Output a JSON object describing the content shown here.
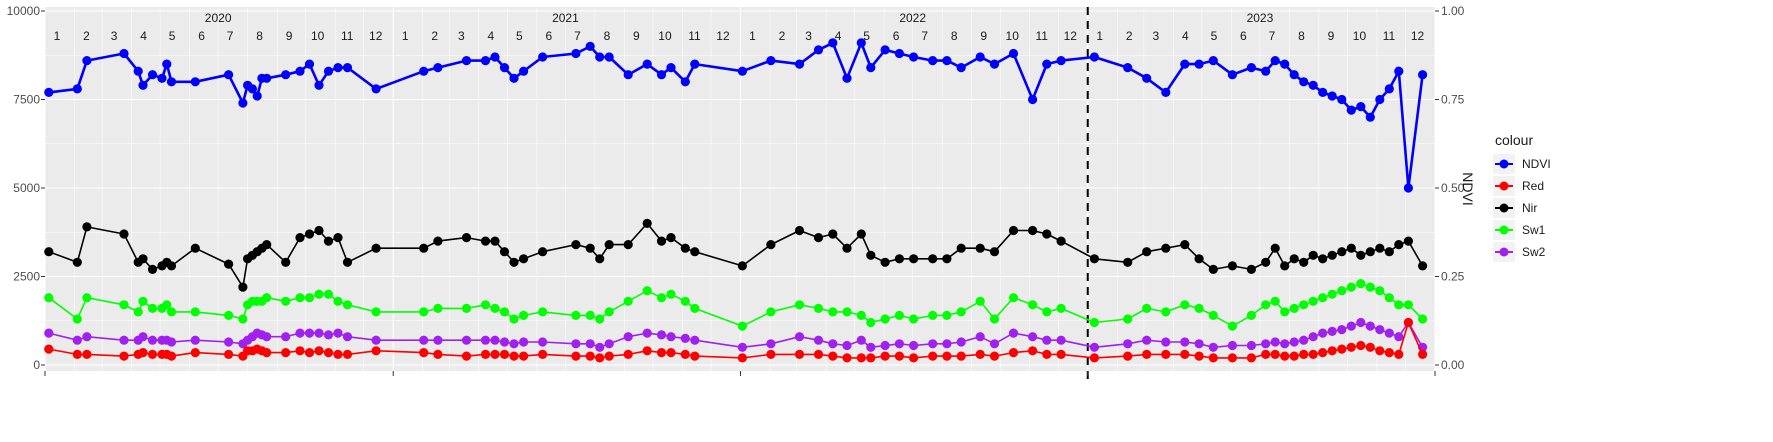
{
  "chart_data": {
    "type": "line",
    "ylim_left": [
      0,
      10000
    ],
    "ylim_right": [
      0.0,
      1.0
    ],
    "y_ticks_left": [
      "0",
      "2500",
      "5000",
      "7500",
      "10000"
    ],
    "y_ticks_right": [
      "0.00",
      "0.25",
      "0.50",
      "0.75",
      "1.00"
    ],
    "ylabel_right": "NDVI",
    "grid": true,
    "legend_position": "right",
    "legend_title": "colour",
    "x_range": [
      "2020-01-01",
      "2024-01-01"
    ],
    "years": [
      {
        "label": "2020",
        "date": "2020-07-01"
      },
      {
        "label": "2021",
        "date": "2021-07-01"
      },
      {
        "label": "2022",
        "date": "2022-07-01"
      },
      {
        "label": "2023",
        "date": "2023-07-01"
      }
    ],
    "months": [
      "1",
      "2",
      "3",
      "4",
      "5",
      "6",
      "7",
      "8",
      "9",
      "10",
      "11",
      "12"
    ],
    "vline_date": "2023-01-01",
    "colors": {
      "NDVI": "#0000ff",
      "Red": "#ff0000",
      "Nir": "#000000",
      "Sw1": "#00ff00",
      "Sw2": "#a020f0"
    },
    "dates": [
      "2020-01-05",
      "2020-02-04",
      "2020-02-14",
      "2020-03-24",
      "2020-04-08",
      "2020-04-13",
      "2020-04-23",
      "2020-05-03",
      "2020-05-08",
      "2020-05-13",
      "2020-06-07",
      "2020-07-12",
      "2020-07-27",
      "2020-08-01",
      "2020-08-06",
      "2020-08-11",
      "2020-08-16",
      "2020-08-21",
      "2020-09-10",
      "2020-09-25",
      "2020-10-05",
      "2020-10-15",
      "2020-10-25",
      "2020-11-04",
      "2020-11-14",
      "2020-12-14",
      "2021-02-02",
      "2021-02-17",
      "2021-03-19",
      "2021-04-08",
      "2021-04-18",
      "2021-04-28",
      "2021-05-08",
      "2021-05-18",
      "2021-06-07",
      "2021-07-12",
      "2021-07-27",
      "2021-08-06",
      "2021-08-16",
      "2021-09-05",
      "2021-09-25",
      "2021-10-10",
      "2021-10-20",
      "2021-11-04",
      "2021-11-14",
      "2022-01-03",
      "2022-02-02",
      "2022-03-04",
      "2022-03-24",
      "2022-04-08",
      "2022-04-23",
      "2022-05-08",
      "2022-05-18",
      "2022-06-02",
      "2022-06-17",
      "2022-07-02",
      "2022-07-22",
      "2022-08-06",
      "2022-08-21",
      "2022-09-10",
      "2022-09-25",
      "2022-10-15",
      "2022-11-04",
      "2022-11-19",
      "2022-12-04",
      "2023-01-08",
      "2023-02-12",
      "2023-03-04",
      "2023-03-24",
      "2023-04-13",
      "2023-04-28",
      "2023-05-13",
      "2023-06-02",
      "2023-06-22",
      "2023-07-07",
      "2023-07-17",
      "2023-07-27",
      "2023-08-06",
      "2023-08-16",
      "2023-08-26",
      "2023-09-05",
      "2023-09-15",
      "2023-09-25",
      "2023-10-05",
      "2023-10-15",
      "2023-10-25",
      "2023-11-04",
      "2023-11-14",
      "2023-11-24",
      "2023-12-04",
      "2023-12-19"
    ],
    "series": [
      {
        "name": "NDVI",
        "axis": "right",
        "values": [
          0.77,
          0.78,
          0.86,
          0.88,
          0.83,
          0.79,
          0.82,
          0.81,
          0.85,
          0.8,
          0.8,
          0.82,
          0.74,
          0.79,
          0.78,
          0.76,
          0.81,
          0.81,
          0.82,
          0.83,
          0.85,
          0.79,
          0.83,
          0.84,
          0.84,
          0.78,
          0.83,
          0.84,
          0.86,
          0.86,
          0.87,
          0.84,
          0.81,
          0.83,
          0.87,
          0.88,
          0.9,
          0.87,
          0.87,
          0.82,
          0.85,
          0.82,
          0.84,
          0.8,
          0.85,
          0.83,
          0.86,
          0.85,
          0.89,
          0.91,
          0.81,
          0.91,
          0.84,
          0.89,
          0.88,
          0.87,
          0.86,
          0.86,
          0.84,
          0.87,
          0.85,
          0.88,
          0.75,
          0.85,
          0.86,
          0.87,
          0.84,
          0.81,
          0.77,
          0.85,
          0.85,
          0.86,
          0.82,
          0.84,
          0.83,
          0.86,
          0.85,
          0.82,
          0.8,
          0.79,
          0.77,
          0.76,
          0.75,
          0.72,
          0.73,
          0.7,
          0.75,
          0.78,
          0.83,
          0.5,
          0.82
        ]
      },
      {
        "name": "Nir",
        "axis": "left",
        "values": [
          3200,
          2900,
          3900,
          3700,
          2900,
          3000,
          2700,
          2800,
          2900,
          2800,
          3300,
          2850,
          2200,
          3000,
          3100,
          3200,
          3300,
          3400,
          2900,
          3600,
          3700,
          3800,
          3500,
          3600,
          2900,
          3300,
          3300,
          3500,
          3600,
          3500,
          3500,
          3200,
          2900,
          3000,
          3200,
          3400,
          3300,
          3000,
          3400,
          3400,
          4000,
          3500,
          3600,
          3300,
          3200,
          2800,
          3400,
          3800,
          3600,
          3700,
          3300,
          3700,
          3100,
          2900,
          3000,
          3000,
          3000,
          3000,
          3300,
          3300,
          3200,
          3800,
          3800,
          3700,
          3500,
          3000,
          2900,
          3200,
          3300,
          3400,
          3000,
          2700,
          2800,
          2700,
          2900,
          3300,
          2800,
          3000,
          2900,
          3100,
          3000,
          3100,
          3200,
          3300,
          3100,
          3200,
          3300,
          3200,
          3400,
          3500,
          2800
        ]
      },
      {
        "name": "Sw1",
        "axis": "left",
        "values": [
          1900,
          1300,
          1900,
          1700,
          1500,
          1800,
          1600,
          1600,
          1700,
          1500,
          1500,
          1400,
          1300,
          1700,
          1800,
          1800,
          1800,
          1900,
          1800,
          1900,
          1900,
          2000,
          2000,
          1800,
          1700,
          1500,
          1500,
          1600,
          1600,
          1700,
          1600,
          1500,
          1300,
          1400,
          1500,
          1400,
          1400,
          1300,
          1500,
          1800,
          2100,
          1900,
          2000,
          1800,
          1600,
          1100,
          1500,
          1700,
          1600,
          1500,
          1500,
          1400,
          1200,
          1300,
          1400,
          1300,
          1400,
          1400,
          1500,
          1800,
          1300,
          1900,
          1700,
          1500,
          1600,
          1200,
          1300,
          1600,
          1500,
          1700,
          1600,
          1400,
          1100,
          1400,
          1700,
          1800,
          1500,
          1600,
          1700,
          1800,
          1900,
          2000,
          2100,
          2200,
          2300,
          2200,
          2100,
          1900,
          1700,
          1700,
          1300
        ]
      },
      {
        "name": "Sw2",
        "axis": "left",
        "values": [
          900,
          700,
          800,
          700,
          700,
          800,
          700,
          700,
          700,
          650,
          700,
          650,
          600,
          700,
          800,
          900,
          850,
          800,
          800,
          900,
          900,
          900,
          850,
          900,
          800,
          700,
          700,
          700,
          700,
          700,
          700,
          650,
          600,
          650,
          650,
          600,
          600,
          500,
          600,
          800,
          900,
          850,
          800,
          750,
          700,
          500,
          600,
          800,
          700,
          600,
          550,
          700,
          500,
          550,
          600,
          550,
          600,
          600,
          650,
          800,
          600,
          900,
          800,
          700,
          700,
          500,
          600,
          700,
          650,
          650,
          600,
          500,
          550,
          550,
          600,
          650,
          600,
          650,
          700,
          800,
          900,
          950,
          1000,
          1100,
          1200,
          1100,
          1000,
          900,
          800,
          1200,
          500
        ]
      },
      {
        "name": "Red",
        "axis": "left",
        "values": [
          450,
          300,
          300,
          250,
          300,
          350,
          300,
          300,
          300,
          250,
          350,
          300,
          250,
          400,
          400,
          450,
          400,
          350,
          350,
          400,
          350,
          400,
          350,
          300,
          300,
          400,
          350,
          300,
          250,
          300,
          300,
          300,
          250,
          250,
          300,
          250,
          250,
          200,
          250,
          300,
          400,
          350,
          350,
          300,
          250,
          200,
          300,
          300,
          300,
          250,
          200,
          200,
          200,
          250,
          250,
          200,
          250,
          250,
          250,
          300,
          250,
          350,
          400,
          300,
          300,
          200,
          250,
          300,
          300,
          300,
          250,
          200,
          200,
          200,
          300,
          300,
          250,
          250,
          300,
          300,
          350,
          400,
          450,
          500,
          550,
          500,
          400,
          350,
          300,
          1200,
          300
        ]
      }
    ]
  }
}
